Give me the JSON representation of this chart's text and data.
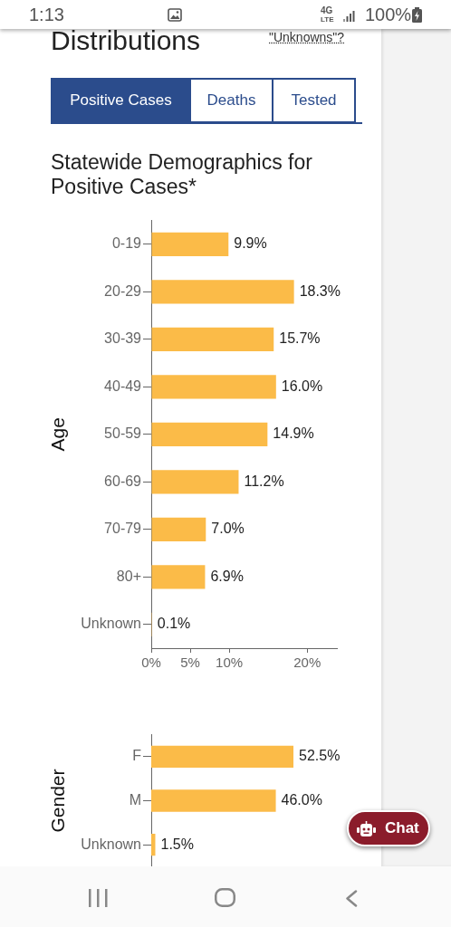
{
  "chart_data": [
    {
      "type": "bar",
      "orientation": "horizontal",
      "title": "Statewide Demographics for Positive Cases*",
      "ylabel": "Age",
      "categories": [
        "0-19",
        "20-29",
        "30-39",
        "40-49",
        "50-59",
        "60-69",
        "70-79",
        "80+",
        "Unknown"
      ],
      "values": [
        9.9,
        18.3,
        15.7,
        16.0,
        14.9,
        11.2,
        7.0,
        6.9,
        0.1
      ],
      "value_labels": [
        "9.9%",
        "18.3%",
        "15.7%",
        "16.0%",
        "14.9%",
        "11.2%",
        "7.0%",
        "6.9%",
        "0.1%"
      ],
      "color": "#fbbb48",
      "xlim": [
        0,
        23.8
      ],
      "xticks": [
        {
          "value": 0,
          "label": "0%"
        },
        {
          "value": 5,
          "label": "5%"
        },
        {
          "value": 10,
          "label": "10%"
        },
        {
          "value": 20,
          "label": "20%"
        }
      ],
      "annotations": [
        "1:13",
        "4G",
        "LTE",
        "100%",
        "Distributions",
        "\"Unknowns\"?",
        "Positive Cases",
        "Deaths",
        "Tested",
        "Chat"
      ]
    },
    {
      "type": "bar",
      "orientation": "horizontal",
      "ylabel": "Gender",
      "categories": [
        "F",
        "M",
        "Unknown"
      ],
      "values": [
        52.5,
        46.0,
        1.5
      ],
      "value_labels": [
        "52.5%",
        "46.0%",
        "1.5%"
      ],
      "color": "#fbbb48",
      "tick_labels": "y"
    }
  ]
}
